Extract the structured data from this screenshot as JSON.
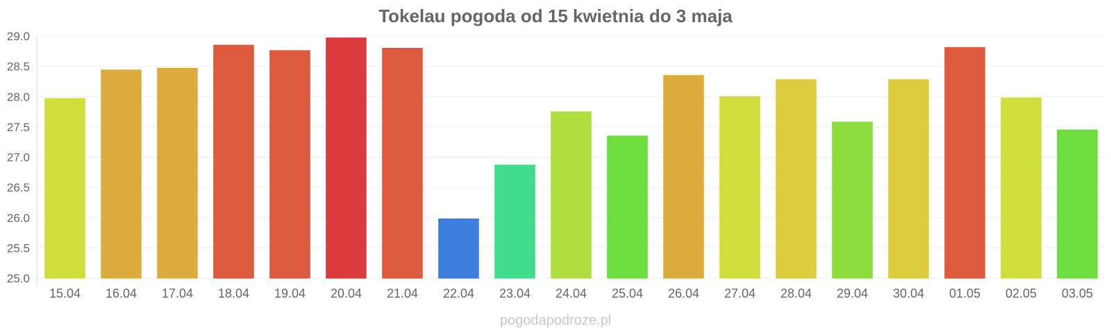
{
  "chart_data": {
    "type": "bar",
    "title": "Tokelau pogoda od 15 kwietnia do 3 maja",
    "xlabel": "",
    "ylabel": "",
    "ylim": [
      25.0,
      29.0
    ],
    "yticks": [
      "25.0",
      "25.5",
      "26.0",
      "26.5",
      "27.0",
      "27.5",
      "28.0",
      "28.5",
      "29.0"
    ],
    "grid": true,
    "legend": "none",
    "categories": [
      "15.04",
      "16.04",
      "17.04",
      "18.04",
      "19.04",
      "20.04",
      "21.04",
      "22.04",
      "23.04",
      "24.04",
      "25.04",
      "26.04",
      "27.04",
      "28.04",
      "29.04",
      "30.04",
      "01.05",
      "02.05",
      "03.05"
    ],
    "values": [
      27.97,
      28.44,
      28.47,
      28.85,
      28.76,
      28.97,
      28.8,
      25.98,
      26.87,
      27.75,
      27.35,
      28.35,
      28.0,
      28.28,
      27.58,
      28.28,
      28.81,
      27.98,
      27.45
    ],
    "colors": [
      "#cddc33",
      "#dba834",
      "#dba834",
      "#dc5134",
      "#dc5134",
      "#db3234",
      "#dc5134",
      "#3477db",
      "#37db87",
      "#abdc34",
      "#66db34",
      "#dba834",
      "#cddc33",
      "#dbca34",
      "#88db34",
      "#dbca34",
      "#dc5134",
      "#cddc33",
      "#66db34"
    ]
  },
  "footer": {
    "source": "pogodapodroze.pl"
  }
}
